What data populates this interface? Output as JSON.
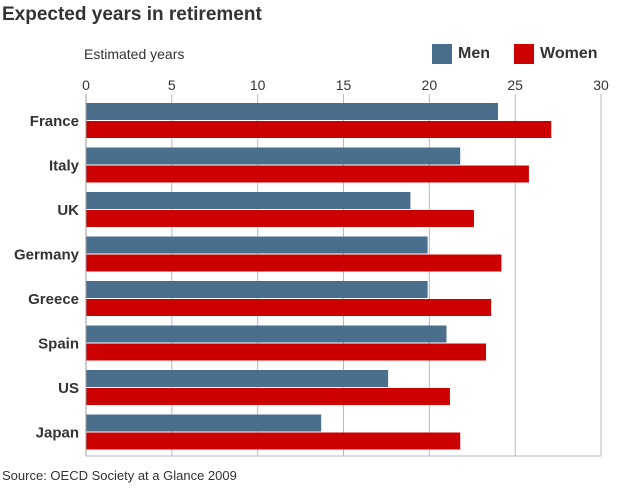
{
  "title": "Expected years in retirement",
  "source": "Source: OECD Society at a Glance 2009",
  "colors": {
    "men": "#4a6f8c",
    "women": "#cc0000",
    "grid": "#b9b9b9",
    "axis": "#999999"
  },
  "chart_data": {
    "type": "bar",
    "orientation": "horizontal",
    "title": "Expected years in retirement",
    "xlabel": "Estimated years",
    "ylabel": "",
    "xlim": [
      0,
      30
    ],
    "xticks": [
      0,
      5,
      10,
      15,
      20,
      25,
      30
    ],
    "grid": true,
    "legend_position": "top-right",
    "categories": [
      "France",
      "Italy",
      "UK",
      "Germany",
      "Greece",
      "Spain",
      "US",
      "Japan"
    ],
    "series": [
      {
        "name": "Men",
        "values": [
          24.0,
          21.8,
          18.9,
          19.9,
          19.9,
          21.0,
          17.6,
          13.7
        ]
      },
      {
        "name": "Women",
        "values": [
          27.1,
          25.8,
          22.6,
          24.2,
          23.6,
          23.3,
          21.2,
          21.8
        ]
      }
    ]
  }
}
